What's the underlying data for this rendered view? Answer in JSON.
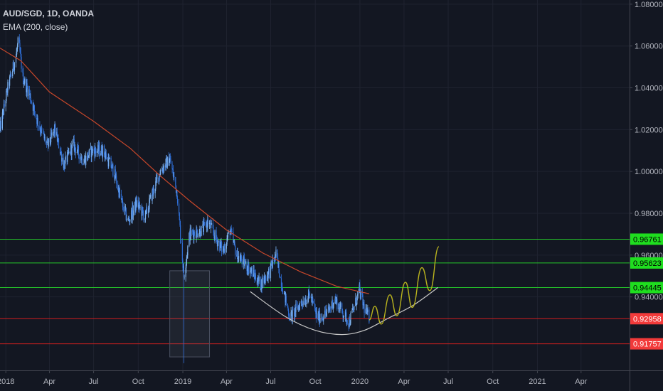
{
  "legend": {
    "symbol": "AUD/SGD, 1D, OANDA",
    "indicator": "EMA (200, close)"
  },
  "colors": {
    "background": "#131722",
    "grid": "#1f2330",
    "candle_up": "#7fb4f0",
    "candle_down": "#2f6fd8",
    "ema": "#c8472a",
    "green_line": "#25c72a",
    "red_line": "#d11f1f",
    "green_tag": "#1fde1f",
    "red_tag": "#f23a3a",
    "arc": "#c8c8c8",
    "projection": "#b9b31e",
    "box": "#4a5060",
    "axis_text": "#b2b5be"
  },
  "chart_data": {
    "type": "candlestick",
    "title": "AUD/SGD, 1D, OANDA",
    "ylim": [
      0.895,
      1.082
    ],
    "x_range": [
      "2017-12-20",
      "2021-07-10"
    ],
    "y_ticks": [
      "1.08000",
      "1.06000",
      "1.04000",
      "1.02000",
      "1.00000",
      "0.98000",
      "0.96000",
      "0.94000"
    ],
    "y_tick_values": [
      1.08,
      1.06,
      1.04,
      1.02,
      1.0,
      0.98,
      0.96,
      0.94
    ],
    "x_ticks": [
      {
        "label": "2018",
        "date": "2018-01-01"
      },
      {
        "label": "Apr",
        "date": "2018-04-01"
      },
      {
        "label": "Jul",
        "date": "2018-07-01"
      },
      {
        "label": "Oct",
        "date": "2018-10-01"
      },
      {
        "label": "2019",
        "date": "2019-01-01"
      },
      {
        "label": "Apr",
        "date": "2019-04-01"
      },
      {
        "label": "Jul",
        "date": "2019-07-01"
      },
      {
        "label": "Oct",
        "date": "2019-10-01"
      },
      {
        "label": "2020",
        "date": "2020-01-01"
      },
      {
        "label": "Apr",
        "date": "2020-04-01"
      },
      {
        "label": "Jul",
        "date": "2020-07-01"
      },
      {
        "label": "Oct",
        "date": "2020-10-01"
      },
      {
        "label": "2021",
        "date": "2021-01-01"
      },
      {
        "label": "Apr",
        "date": "2021-04-01"
      }
    ],
    "price_path": [
      [
        "2017-12-20",
        1.02
      ],
      [
        "2018-01-05",
        1.04
      ],
      [
        "2018-01-22",
        1.055
      ],
      [
        "2018-01-27",
        1.063
      ],
      [
        "2018-02-05",
        1.045
      ],
      [
        "2018-02-20",
        1.036
      ],
      [
        "2018-03-10",
        1.022
      ],
      [
        "2018-03-28",
        1.012
      ],
      [
        "2018-04-12",
        1.02
      ],
      [
        "2018-05-01",
        1.003
      ],
      [
        "2018-05-20",
        1.013
      ],
      [
        "2018-06-10",
        1.005
      ],
      [
        "2018-06-28",
        1.01
      ],
      [
        "2018-07-20",
        1.01
      ],
      [
        "2018-08-12",
        1.0
      ],
      [
        "2018-08-28",
        0.985
      ],
      [
        "2018-09-10",
        0.976
      ],
      [
        "2018-09-28",
        0.985
      ],
      [
        "2018-10-15",
        0.978
      ],
      [
        "2018-10-28",
        0.988
      ],
      [
        "2018-11-15",
        1.0
      ],
      [
        "2018-12-05",
        1.006
      ],
      [
        "2018-12-20",
        0.99
      ],
      [
        "2019-01-03",
        0.95
      ],
      [
        "2019-01-15",
        0.97
      ],
      [
        "2019-02-10",
        0.972
      ],
      [
        "2019-02-22",
        0.976
      ],
      [
        "2019-03-10",
        0.968
      ],
      [
        "2019-03-25",
        0.962
      ],
      [
        "2019-04-08",
        0.972
      ],
      [
        "2019-04-22",
        0.96
      ],
      [
        "2019-05-20",
        0.953
      ],
      [
        "2019-06-10",
        0.946
      ],
      [
        "2019-06-28",
        0.952
      ],
      [
        "2019-07-12",
        0.96
      ],
      [
        "2019-07-28",
        0.942
      ],
      [
        "2019-08-10",
        0.93
      ],
      [
        "2019-09-01",
        0.937
      ],
      [
        "2019-09-20",
        0.941
      ],
      [
        "2019-10-05",
        0.93
      ],
      [
        "2019-10-25",
        0.932
      ],
      [
        "2019-11-10",
        0.939
      ],
      [
        "2019-11-28",
        0.932
      ],
      [
        "2019-12-10",
        0.928
      ],
      [
        "2019-12-31",
        0.943
      ],
      [
        "2020-01-12",
        0.933
      ],
      [
        "2020-01-20",
        0.93
      ]
    ],
    "flash_crash": {
      "date": "2019-01-03",
      "low": 0.9083
    },
    "ema": {
      "name": "EMA (200, close)",
      "points": [
        [
          "2017-12-20",
          1.059
        ],
        [
          "2018-02-01",
          1.053
        ],
        [
          "2018-04-01",
          1.038
        ],
        [
          "2018-07-01",
          1.024
        ],
        [
          "2018-09-15",
          1.011
        ],
        [
          "2018-11-15",
          0.998
        ],
        [
          "2019-01-15",
          0.986
        ],
        [
          "2019-04-01",
          0.972
        ],
        [
          "2019-06-15",
          0.961
        ],
        [
          "2019-09-01",
          0.952
        ],
        [
          "2019-11-15",
          0.945
        ],
        [
          "2020-01-20",
          0.9415
        ]
      ]
    },
    "horizontal_levels": [
      {
        "value": 0.96761,
        "label": "0.96761",
        "kind": "resistance"
      },
      {
        "value": 0.95623,
        "label": "0.95623",
        "kind": "resistance"
      },
      {
        "value": 0.94445,
        "label": "0.94445",
        "kind": "resistance"
      },
      {
        "value": 0.92958,
        "label": "0.92958",
        "kind": "support"
      },
      {
        "value": 0.91757,
        "label": "0.91757",
        "kind": "support"
      }
    ],
    "rounding_bottom_arc": [
      [
        "2019-05-20",
        0.9425
      ],
      [
        "2019-08-01",
        0.9305
      ],
      [
        "2019-10-01",
        0.924
      ],
      [
        "2019-11-25",
        0.922
      ],
      [
        "2020-01-10",
        0.924
      ],
      [
        "2020-03-01",
        0.93
      ],
      [
        "2020-04-20",
        0.936
      ],
      [
        "2020-06-10",
        0.9445
      ]
    ],
    "projection_path": [
      [
        "2020-01-20",
        0.929
      ],
      [
        "2020-02-01",
        0.9355
      ],
      [
        "2020-02-14",
        0.927
      ],
      [
        "2020-03-03",
        0.941
      ],
      [
        "2020-03-17",
        0.931
      ],
      [
        "2020-04-04",
        0.947
      ],
      [
        "2020-04-18",
        0.935
      ],
      [
        "2020-05-08",
        0.954
      ],
      [
        "2020-05-24",
        0.943
      ],
      [
        "2020-06-12",
        0.964
      ]
    ],
    "highlight_box": {
      "x_start": "2018-12-05",
      "x_end": "2019-02-25",
      "y_top": 0.9525,
      "y_bottom": 0.9113
    }
  }
}
